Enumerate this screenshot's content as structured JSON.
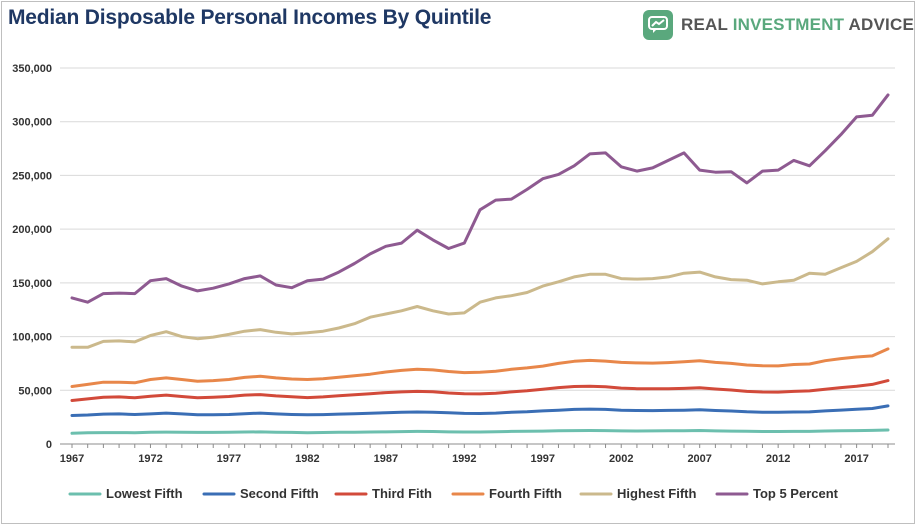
{
  "header": {
    "title": "Median Disposable Personal Incomes By Quintile",
    "brand_part1": "REAL ",
    "brand_part2": "INVESTMENT",
    "brand_part3": " ADVICE"
  },
  "chart_data": {
    "type": "line",
    "title": "Median Disposable Personal Incomes By Quintile",
    "xlabel": "",
    "ylabel": "",
    "xlim": [
      1967,
      2019
    ],
    "ylim": [
      0,
      350000
    ],
    "x_ticks": [
      "1967",
      "1972",
      "1977",
      "1982",
      "1987",
      "1992",
      "1997",
      "2002",
      "2007",
      "2012",
      "2017"
    ],
    "y_ticks": [
      "0",
      "50,000",
      "100,000",
      "150,000",
      "200,000",
      "250,000",
      "300,000",
      "350,000"
    ],
    "grid": true,
    "legend_position": "bottom",
    "x": [
      1967,
      1968,
      1969,
      1970,
      1971,
      1972,
      1973,
      1974,
      1975,
      1976,
      1977,
      1978,
      1979,
      1980,
      1981,
      1982,
      1983,
      1984,
      1985,
      1986,
      1987,
      1988,
      1989,
      1990,
      1991,
      1992,
      1993,
      1994,
      1995,
      1996,
      1997,
      1998,
      1999,
      2000,
      2001,
      2002,
      2003,
      2004,
      2005,
      2006,
      2007,
      2008,
      2009,
      2010,
      2011,
      2012,
      2013,
      2014,
      2015,
      2016,
      2017,
      2018,
      2019
    ],
    "series": [
      {
        "name": "Lowest Fifth",
        "color": "#6cbfae",
        "values": [
          10000,
          10500,
          10600,
          10600,
          10500,
          11000,
          11100,
          11000,
          10800,
          10800,
          10900,
          11200,
          11300,
          11000,
          10800,
          10500,
          10700,
          10900,
          11000,
          11200,
          11300,
          11500,
          11700,
          11600,
          11300,
          11200,
          11200,
          11400,
          11700,
          11800,
          12000,
          12300,
          12500,
          12600,
          12500,
          12200,
          12100,
          12200,
          12300,
          12400,
          12600,
          12200,
          12000,
          11800,
          11600,
          11600,
          11700,
          11700,
          12100,
          12300,
          12500,
          12700,
          13000
        ]
      },
      {
        "name": "Second Fifth",
        "color": "#3a6eb5",
        "values": [
          26500,
          27000,
          27800,
          28000,
          27500,
          28000,
          28800,
          28000,
          27200,
          27300,
          27500,
          28200,
          28800,
          28000,
          27500,
          27200,
          27400,
          27800,
          28200,
          28700,
          29000,
          29500,
          29800,
          29600,
          29000,
          28500,
          28400,
          28800,
          29500,
          30000,
          30800,
          31500,
          32200,
          32500,
          32200,
          31500,
          31200,
          31100,
          31300,
          31500,
          31800,
          31200,
          30700,
          30000,
          29600,
          29500,
          29800,
          29900,
          30800,
          31600,
          32300,
          33000,
          35500
        ]
      },
      {
        "name": "Third Fith",
        "color": "#d24a3a",
        "values": [
          40500,
          42000,
          43500,
          43800,
          43000,
          44500,
          45500,
          44200,
          43000,
          43500,
          44200,
          45500,
          46000,
          44800,
          44000,
          43200,
          43800,
          45000,
          45800,
          46800,
          47800,
          48500,
          49000,
          48600,
          47500,
          46700,
          46600,
          47300,
          48500,
          49500,
          51000,
          52500,
          53500,
          53700,
          53300,
          52000,
          51500,
          51400,
          51500,
          51800,
          52300,
          51200,
          50300,
          49000,
          48400,
          48300,
          49000,
          49400,
          51000,
          52500,
          53800,
          55500,
          59000
        ]
      },
      {
        "name": "Fourth Fifth",
        "color": "#e8874a",
        "values": [
          53500,
          55500,
          57500,
          57500,
          57000,
          60000,
          61500,
          60000,
          58500,
          59000,
          60000,
          62000,
          63000,
          61500,
          60500,
          60000,
          60700,
          62200,
          63500,
          65000,
          67000,
          68500,
          69500,
          69000,
          67500,
          66500,
          66800,
          67800,
          69500,
          70800,
          72500,
          75000,
          77000,
          77800,
          77200,
          76000,
          75500,
          75300,
          75800,
          76500,
          77500,
          76000,
          75000,
          73500,
          72800,
          72700,
          74000,
          74500,
          77500,
          79500,
          81000,
          82000,
          88500
        ]
      },
      {
        "name": "Highest Fifth",
        "color": "#cbb98c",
        "values": [
          90000,
          90000,
          95500,
          96000,
          95000,
          101000,
          104500,
          100000,
          98000,
          99500,
          102000,
          105000,
          106500,
          104000,
          102500,
          103500,
          105000,
          108000,
          112000,
          118000,
          121000,
          124000,
          128000,
          124000,
          121000,
          122000,
          132000,
          136000,
          138000,
          141000,
          147000,
          151000,
          155500,
          158000,
          158000,
          154000,
          153500,
          154000,
          155500,
          159000,
          160000,
          155500,
          153000,
          152500,
          149000,
          151000,
          152500,
          159000,
          158000,
          164000,
          170000,
          179000,
          191000
        ]
      },
      {
        "name": "Top 5 Percent",
        "color": "#8e5a91",
        "values": [
          136000,
          132000,
          140000,
          140500,
          140000,
          152000,
          154000,
          147000,
          142500,
          145000,
          149000,
          154000,
          156500,
          148000,
          145500,
          152000,
          153500,
          160000,
          168000,
          177000,
          184000,
          187000,
          199000,
          190000,
          182000,
          187000,
          218000,
          227000,
          228000,
          237000,
          247000,
          251000,
          259000,
          270000,
          271000,
          258000,
          254000,
          257000,
          264000,
          271000,
          255000,
          253000,
          253500,
          243000,
          254000,
          255000,
          264000,
          259000,
          273000,
          288000,
          304500,
          306000,
          325000
        ]
      }
    ]
  }
}
